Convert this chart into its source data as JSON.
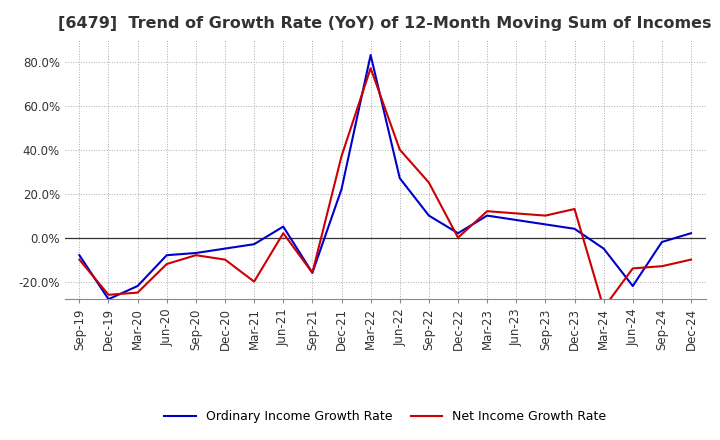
{
  "title": "[6479]  Trend of Growth Rate (YoY) of 12-Month Moving Sum of Incomes",
  "title_fontsize": 11.5,
  "ylim": [
    -28,
    90
  ],
  "yticks": [
    -20.0,
    0.0,
    20.0,
    40.0,
    60.0,
    80.0
  ],
  "background_color": "#ffffff",
  "grid_color": "#aaaaaa",
  "ordinary_color": "#0000cc",
  "net_color": "#cc0000",
  "legend_labels": [
    "Ordinary Income Growth Rate",
    "Net Income Growth Rate"
  ],
  "dates": [
    "Sep-19",
    "Dec-19",
    "Mar-20",
    "Jun-20",
    "Sep-20",
    "Dec-20",
    "Mar-21",
    "Jun-21",
    "Sep-21",
    "Dec-21",
    "Mar-22",
    "Jun-22",
    "Sep-22",
    "Dec-22",
    "Mar-23",
    "Jun-23",
    "Sep-23",
    "Dec-23",
    "Mar-24",
    "Jun-24",
    "Sep-24",
    "Dec-24"
  ],
  "ordinary_income": [
    -8.0,
    -28.0,
    -22.0,
    -8.0,
    -7.0,
    -5.0,
    -3.0,
    5.0,
    -16.0,
    22.0,
    83.0,
    27.0,
    10.0,
    2.0,
    10.0,
    8.0,
    6.0,
    4.0,
    -5.0,
    -22.0,
    -2.0,
    2.0
  ],
  "net_income": [
    -10.0,
    -26.0,
    -25.0,
    -12.0,
    -8.0,
    -10.0,
    -20.0,
    2.0,
    -16.0,
    37.0,
    77.0,
    40.0,
    25.0,
    0.0,
    12.0,
    11.0,
    10.0,
    13.0,
    -32.0,
    -14.0,
    -13.0,
    -10.0
  ]
}
